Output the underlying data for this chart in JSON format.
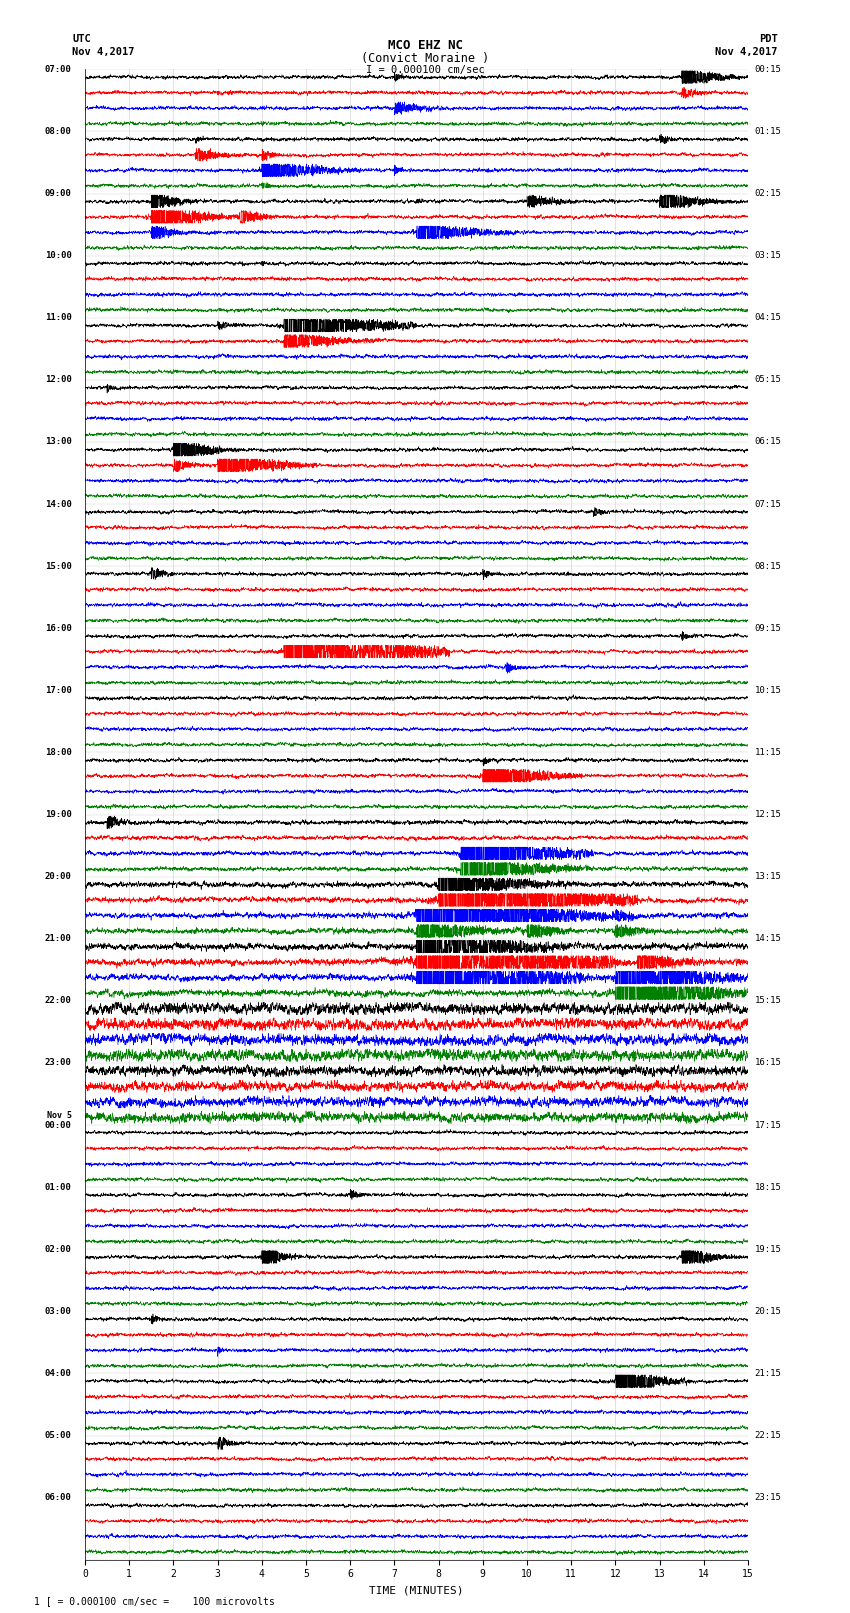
{
  "title_line1": "MCO EHZ NC",
  "title_line2": "(Convict Moraine )",
  "scale_label": "I = 0.000100 cm/sec",
  "utc_label": "UTC",
  "pdt_label": "PDT",
  "date_label": "Nov 4,2017",
  "xlabel": "TIME (MINUTES)",
  "footnote": "1 [ = 0.000100 cm/sec =    100 microvolts",
  "left_times": [
    "07:00",
    "08:00",
    "09:00",
    "10:00",
    "11:00",
    "12:00",
    "13:00",
    "14:00",
    "15:00",
    "16:00",
    "17:00",
    "18:00",
    "19:00",
    "20:00",
    "21:00",
    "22:00",
    "23:00",
    "Nov 5",
    "00:00",
    "01:00",
    "02:00",
    "03:00",
    "04:00",
    "05:00",
    "06:00"
  ],
  "right_times": [
    "00:15",
    "01:15",
    "02:15",
    "03:15",
    "04:15",
    "05:15",
    "06:15",
    "07:15",
    "08:15",
    "09:15",
    "10:15",
    "11:15",
    "12:15",
    "13:15",
    "14:15",
    "15:15",
    "16:15",
    "17:15",
    "18:15",
    "19:15",
    "20:15",
    "21:15",
    "22:15",
    "23:15"
  ],
  "colors": [
    "black",
    "red",
    "blue",
    "green"
  ],
  "traces_per_hour": 4,
  "total_rows": 96,
  "minutes": 15,
  "fig_width": 8.5,
  "fig_height": 16.13,
  "bg_color": "white",
  "trace_color_cycle": [
    "black",
    "red",
    "blue",
    "green"
  ],
  "seed": 42
}
